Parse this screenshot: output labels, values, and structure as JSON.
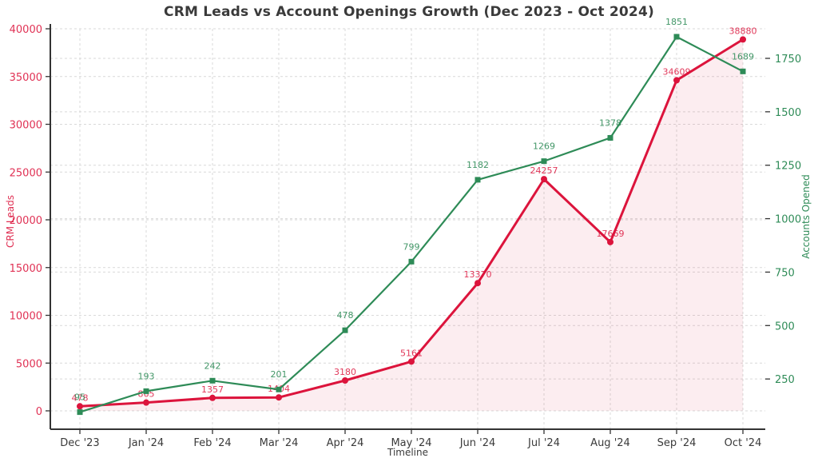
{
  "title": "CRM Leads vs Account Openings Growth (Dec 2023 - Oct 2024)",
  "colors": {
    "crm_leads": "#DC143C",
    "accounts_opened": "#2E8B57",
    "grid": "#d9d9d9",
    "spine": "#333333",
    "x_tick_text": "#3a3a3a",
    "area_fill": "rgba(220,20,60,0.08)"
  },
  "chart_data": {
    "type": "line",
    "title": "CRM Leads vs Account Openings Growth (Dec 2023 - Oct 2024)",
    "categories": [
      "Dec '23",
      "Jan '24",
      "Feb '24",
      "Mar '24",
      "Apr '24",
      "May '24",
      "Jun '24",
      "Jul '24",
      "Aug '24",
      "Sep '24",
      "Oct '24"
    ],
    "series": [
      {
        "name": "CRM Leads",
        "axis": "left",
        "color": "#DC143C",
        "marker": "circle",
        "area_fill": true,
        "values": [
          478,
          865,
          1357,
          1404,
          3180,
          5161,
          13370,
          24257,
          17669,
          34609,
          38880
        ]
      },
      {
        "name": "Accounts Opened",
        "axis": "right",
        "color": "#2E8B57",
        "marker": "square",
        "area_fill": false,
        "values": [
          95,
          193,
          242,
          201,
          478,
          799,
          1182,
          1269,
          1378,
          1851,
          1689
        ]
      }
    ],
    "xlabel": "Timeline",
    "left_axis": {
      "label": "CRM Leads",
      "ticks": [
        0,
        5000,
        10000,
        15000,
        20000,
        25000,
        30000,
        35000,
        40000
      ],
      "range": [
        0,
        40000
      ],
      "color": "#DC143C"
    },
    "right_axis": {
      "label": "Accounts Opened",
      "ticks": [
        250,
        500,
        750,
        1000,
        1250,
        1500,
        1750
      ],
      "range": [
        0,
        1750
      ],
      "color": "#2E8B57"
    },
    "grid": true,
    "grid_style": "dashed",
    "legend": "none",
    "data_labels": true
  }
}
